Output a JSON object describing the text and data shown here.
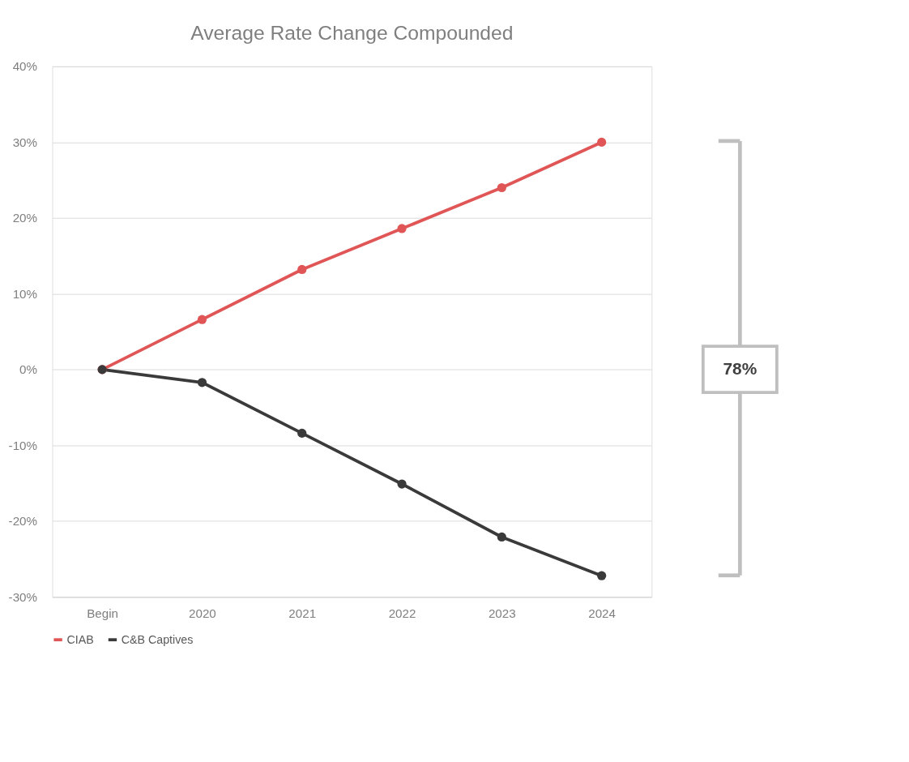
{
  "chart_data": {
    "type": "line",
    "title": "Average Rate Change Compounded",
    "categories": [
      "Begin",
      "2020",
      "2021",
      "2022",
      "2023",
      "2024"
    ],
    "series": [
      {
        "name": "CIAB",
        "color": "#e05555",
        "values": [
          0,
          6.6,
          13.2,
          18.6,
          24.0,
          30.0
        ]
      },
      {
        "name": "C&B Captives",
        "color": "#3a3a3a",
        "values": [
          0,
          -1.7,
          -8.4,
          -15.1,
          -22.1,
          -27.2
        ]
      }
    ],
    "ylim": [
      -30,
      40
    ],
    "yticks": [
      {
        "value": -30,
        "label": "-30%"
      },
      {
        "value": -20,
        "label": "-20%"
      },
      {
        "value": -10,
        "label": "-10%"
      },
      {
        "value": 0,
        "label": "0%"
      },
      {
        "value": 10,
        "label": "10%"
      },
      {
        "value": 20,
        "label": "20%"
      },
      {
        "value": 30,
        "label": "30%"
      },
      {
        "value": 40,
        "label": "40%"
      }
    ],
    "grid": "y",
    "legend": "bottom",
    "marker": "circle",
    "line_style": "solid",
    "annotations": [
      "78%"
    ]
  }
}
